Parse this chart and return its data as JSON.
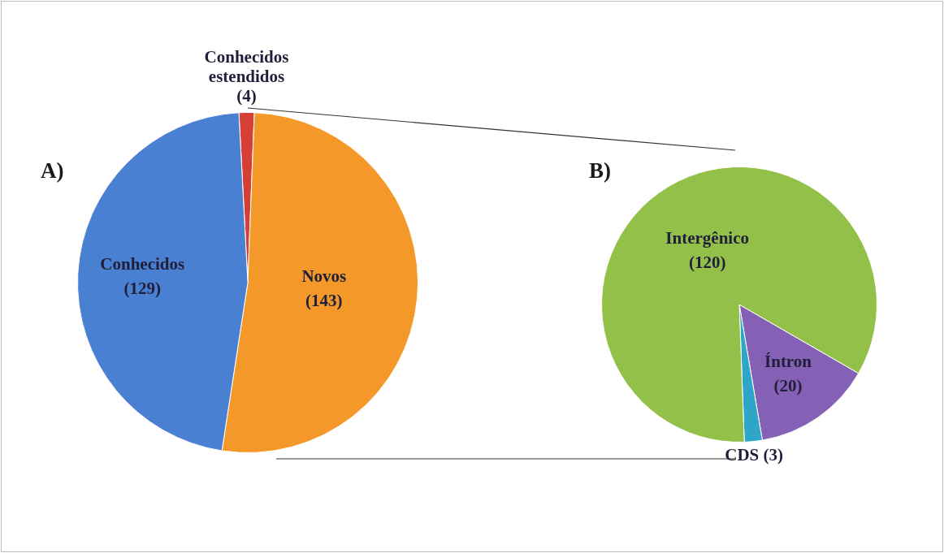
{
  "chart_data": [
    {
      "type": "pie",
      "title": "A)",
      "categories": [
        "Conhecidos estendidos",
        "Novos",
        "Conhecidos"
      ],
      "values": [
        4,
        143,
        129
      ],
      "colors": [
        "#d63f36",
        "#f5982a",
        "#4a80d2"
      ],
      "value_labels": [
        "(4)",
        "(143)",
        "(129)"
      ]
    },
    {
      "type": "pie",
      "title": "B)",
      "categories": [
        "Íntron",
        "CDS",
        "Intergênico"
      ],
      "values": [
        20,
        3,
        120
      ],
      "colors": [
        "#8561b5",
        "#2fa6c8",
        "#93c048"
      ],
      "value_labels": [
        "(20)",
        "(3)",
        "(120)"
      ]
    }
  ]
}
